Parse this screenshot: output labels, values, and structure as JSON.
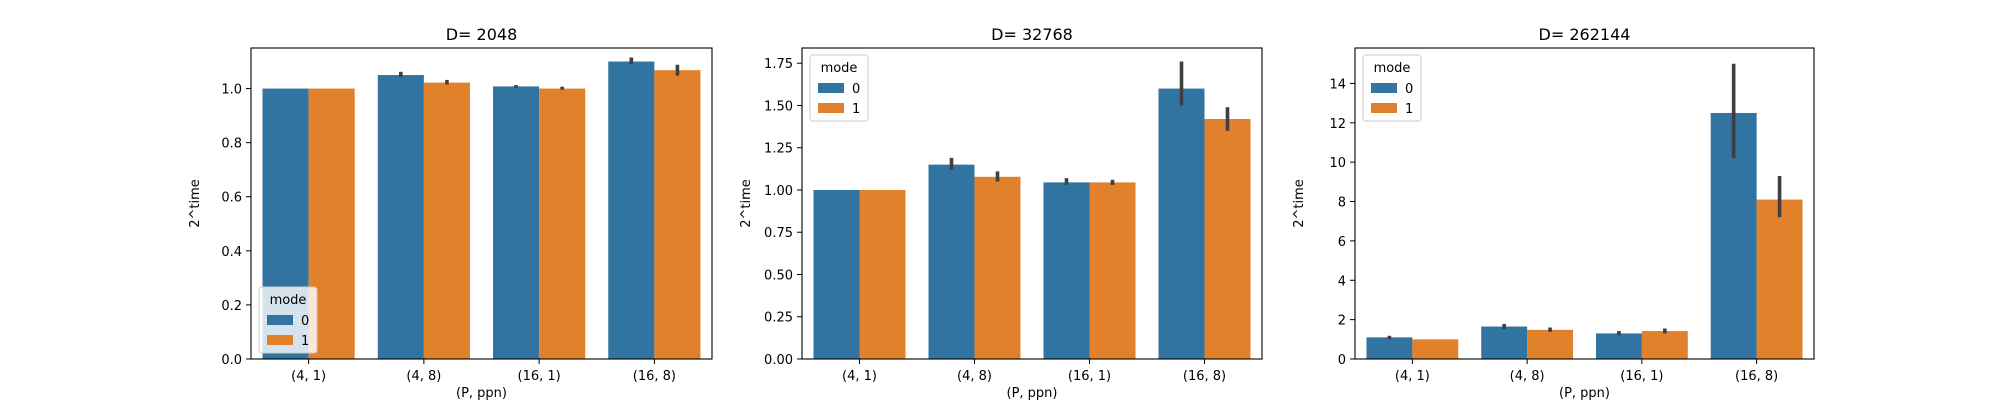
{
  "chart_data": [
    {
      "type": "bar",
      "title": "D= 2048",
      "xlabel": "(P, ppn)",
      "ylabel": "2^time",
      "categories": [
        "(4, 1)",
        "(4, 8)",
        "(16, 1)",
        "(16, 8)"
      ],
      "ylim": [
        0,
        1.15
      ],
      "yticks": [
        "0.0",
        "0.2",
        "0.4",
        "0.6",
        "0.8",
        "1.0"
      ],
      "ytick_values": [
        0,
        0.2,
        0.4,
        0.6,
        0.8,
        1.0
      ],
      "legend": {
        "title": "mode",
        "placement": "lower-left",
        "entries": [
          "0",
          "1"
        ]
      },
      "series": [
        {
          "name": "0",
          "color": "#3274a1",
          "values": [
            1.0,
            1.05,
            1.008,
            1.1
          ],
          "err_low": [
            1.0,
            1.042,
            1.003,
            1.09
          ],
          "err_high": [
            1.0,
            1.062,
            1.013,
            1.115
          ]
        },
        {
          "name": "1",
          "color": "#e1812c",
          "values": [
            1.0,
            1.022,
            1.0,
            1.068
          ],
          "err_low": [
            1.0,
            1.015,
            0.996,
            1.048
          ],
          "err_high": [
            1.0,
            1.032,
            1.007,
            1.088
          ]
        }
      ]
    },
    {
      "type": "bar",
      "title": "D= 32768",
      "xlabel": "(P, ppn)",
      "ylabel": "2^time",
      "categories": [
        "(4, 1)",
        "(4, 8)",
        "(16, 1)",
        "(16, 8)"
      ],
      "ylim": [
        0,
        1.84
      ],
      "yticks": [
        "0.00",
        "0.25",
        "0.50",
        "0.75",
        "1.00",
        "1.25",
        "1.50",
        "1.75"
      ],
      "ytick_values": [
        0,
        0.25,
        0.5,
        0.75,
        1.0,
        1.25,
        1.5,
        1.75
      ],
      "legend": {
        "title": "mode",
        "placement": "upper-left",
        "entries": [
          "0",
          "1"
        ]
      },
      "series": [
        {
          "name": "0",
          "color": "#3274a1",
          "values": [
            1.0,
            1.15,
            1.045,
            1.6
          ],
          "err_low": [
            1.0,
            1.12,
            1.03,
            1.5
          ],
          "err_high": [
            1.0,
            1.19,
            1.07,
            1.76
          ]
        },
        {
          "name": "1",
          "color": "#e1812c",
          "values": [
            1.0,
            1.078,
            1.045,
            1.42
          ],
          "err_low": [
            1.0,
            1.05,
            1.03,
            1.35
          ],
          "err_high": [
            1.0,
            1.11,
            1.06,
            1.49
          ]
        }
      ]
    },
    {
      "type": "bar",
      "title": "D= 262144",
      "xlabel": "(P, ppn)",
      "ylabel": "2^time",
      "categories": [
        "(4, 1)",
        "(4, 8)",
        "(16, 1)",
        "(16, 8)"
      ],
      "ylim": [
        0,
        15.8
      ],
      "yticks": [
        "0",
        "2",
        "4",
        "6",
        "8",
        "10",
        "12",
        "14"
      ],
      "ytick_values": [
        0,
        2,
        4,
        6,
        8,
        10,
        12,
        14
      ],
      "legend": {
        "title": "mode",
        "placement": "upper-left",
        "entries": [
          "0",
          "1"
        ]
      },
      "series": [
        {
          "name": "0",
          "color": "#3274a1",
          "values": [
            1.1,
            1.65,
            1.3,
            12.5
          ],
          "err_low": [
            1.0,
            1.52,
            1.2,
            10.2
          ],
          "err_high": [
            1.18,
            1.78,
            1.42,
            15.0
          ]
        },
        {
          "name": "1",
          "color": "#e1812c",
          "values": [
            1.0,
            1.48,
            1.42,
            8.1
          ],
          "err_low": [
            1.0,
            1.38,
            1.3,
            7.2
          ],
          "err_high": [
            1.0,
            1.6,
            1.55,
            9.3
          ]
        }
      ]
    }
  ]
}
